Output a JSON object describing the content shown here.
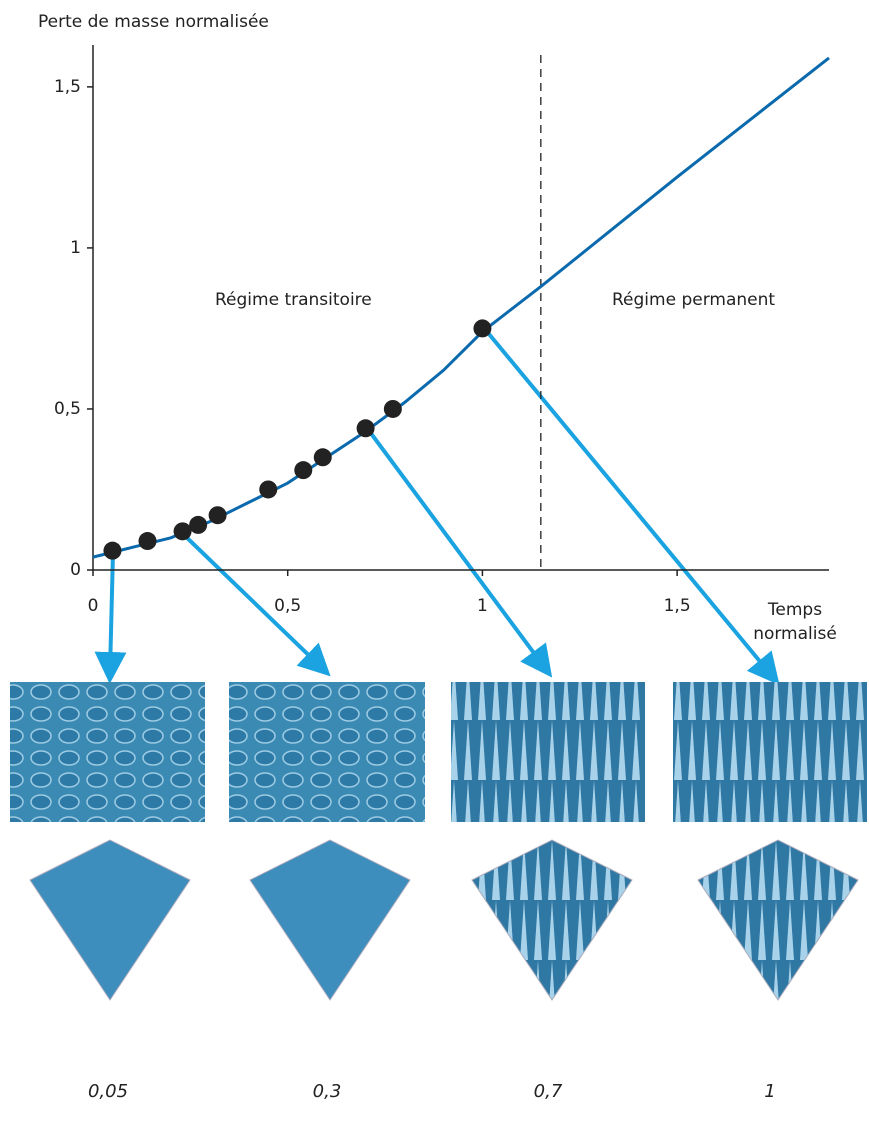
{
  "chart_data": {
    "type": "line",
    "ylabel": "Perte de masse normalisée",
    "xlabel": "Temps normalisé",
    "annotations": [
      "Régime transitoire",
      "Régime permanent"
    ],
    "vline": 1.15,
    "xlim": [
      0,
      1.89
    ],
    "ylim": [
      0,
      1.63
    ],
    "xticks": [
      0,
      {
        "value": 0.5,
        "label": "0,5"
      },
      1,
      {
        "value": 1.5,
        "label": "1,5"
      }
    ],
    "yticks": [
      0,
      {
        "value": 0.5,
        "label": "0,5"
      },
      1,
      {
        "value": 1.5,
        "label": "1,5"
      }
    ],
    "series": [
      {
        "color": "#0a6aad",
        "x": [
          0,
          0.1,
          0.2,
          0.3,
          0.4,
          0.5,
          0.6,
          0.7,
          0.8,
          0.9,
          1.0,
          1.15,
          1.5,
          1.89
        ],
        "values": [
          0.04,
          0.07,
          0.1,
          0.15,
          0.21,
          0.27,
          0.35,
          0.43,
          0.52,
          0.62,
          0.74,
          0.88,
          1.22,
          1.59
        ]
      },
      {
        "color": "#222222",
        "x": [
          0.05,
          0.14,
          0.23,
          0.27,
          0.32,
          0.45,
          0.54,
          0.59,
          0.7,
          0.77,
          1.0
        ],
        "values": [
          0.06,
          0.09,
          0.12,
          0.14,
          0.17,
          0.25,
          0.31,
          0.35,
          0.44,
          0.5,
          0.75
        ]
      }
    ],
    "panels": [
      "0,05",
      "0,3",
      "0,7",
      "1"
    ]
  }
}
